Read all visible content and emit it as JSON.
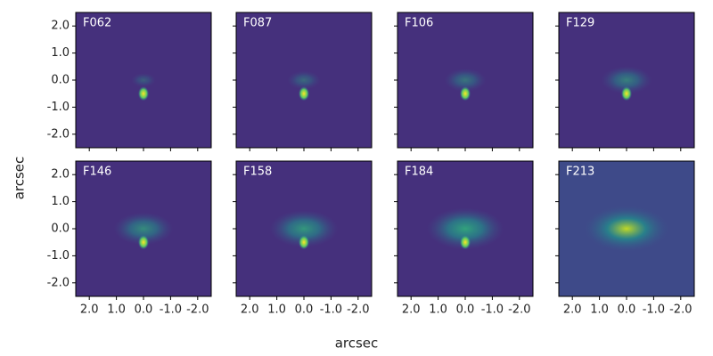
{
  "chart_data": {
    "type": "image",
    "panels": [
      {
        "title": "F062"
      },
      {
        "title": "F087"
      },
      {
        "title": "F106"
      },
      {
        "title": "F129"
      },
      {
        "title": "F146"
      },
      {
        "title": "F158"
      },
      {
        "title": "F184"
      },
      {
        "title": "F213"
      }
    ],
    "xlabel": "arcsec",
    "ylabel": "arcsec",
    "xlim": [
      2.5,
      -2.5
    ],
    "ylim": [
      -2.5,
      2.5
    ],
    "xticks": [
      {
        "value": 2,
        "label": "2.0"
      },
      {
        "value": 1,
        "label": "1.0"
      },
      {
        "value": 0,
        "label": "0.0"
      },
      {
        "value": -1,
        "label": "-1.0"
      },
      {
        "value": -2,
        "label": "-2.0"
      }
    ],
    "yticks": [
      {
        "value": 2,
        "label": "2.0"
      },
      {
        "value": 1,
        "label": "1.0"
      },
      {
        "value": 0,
        "label": "0.0"
      },
      {
        "value": -1,
        "label": "-1.0"
      },
      {
        "value": -2,
        "label": "-2.0"
      }
    ]
  }
}
